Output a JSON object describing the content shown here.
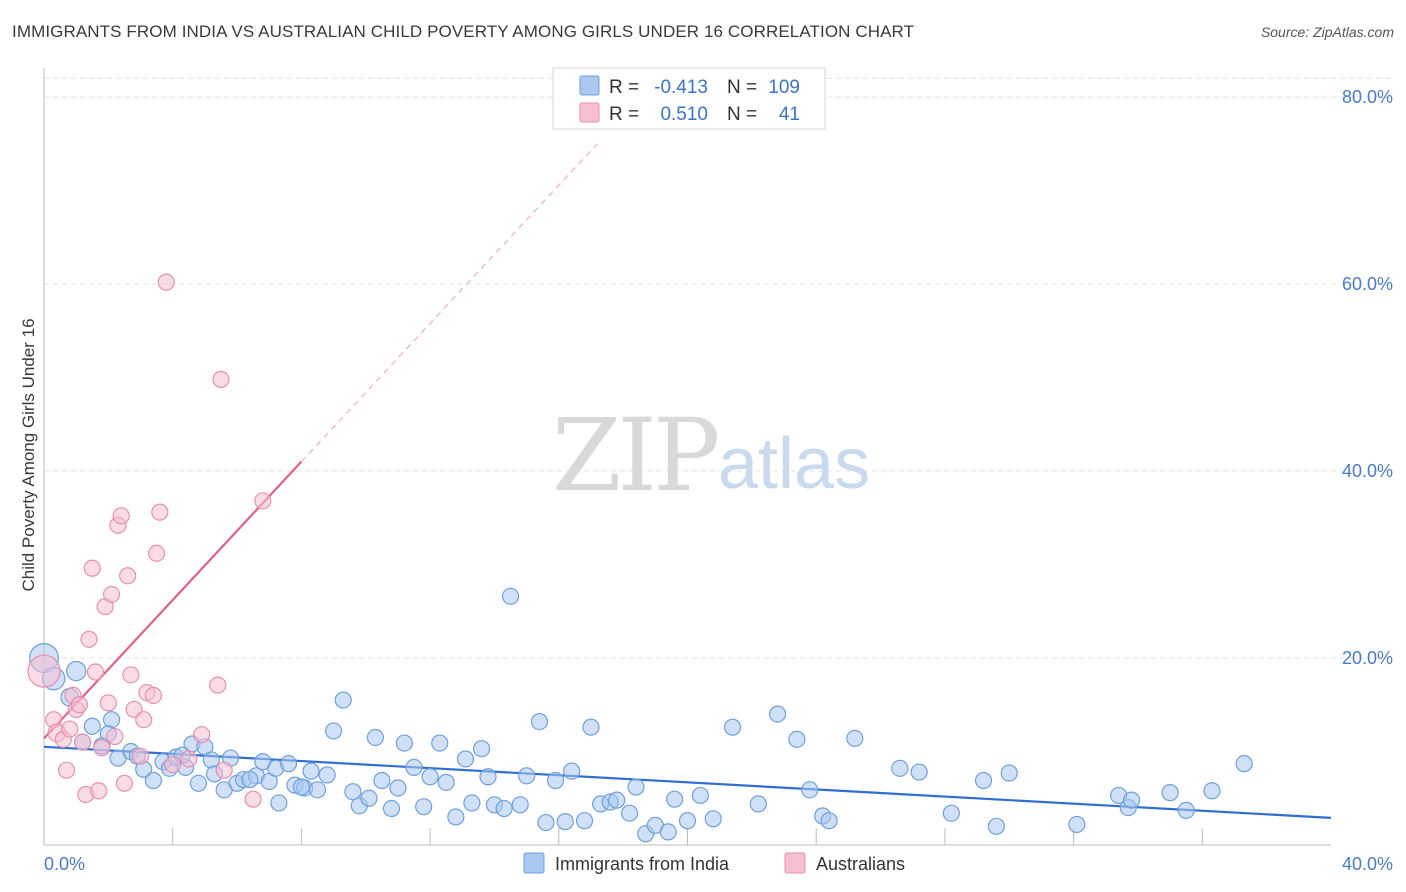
{
  "title": "IMMIGRANTS FROM INDIA VS AUSTRALIAN CHILD POVERTY AMONG GIRLS UNDER 16 CORRELATION CHART",
  "source": "Source: ZipAtlas.com",
  "watermark": {
    "zip": "ZIP",
    "atlas": "atlas"
  },
  "colors": {
    "blue_fill": "#a9c8f0",
    "blue_stroke": "#6fa0dc",
    "blue_line": "#2f6fd0",
    "pink_fill": "#f6c0d2",
    "pink_stroke": "#e98fb0",
    "pink_line": "#e0608e",
    "grid": "#e3e3e3",
    "tick_text": "#4a7cc9"
  },
  "legend": {
    "rows": [
      {
        "r_label": "R =",
        "r_value": "-0.413",
        "n_label": "N =",
        "n_value": "109"
      },
      {
        "r_label": "R =",
        "r_value": "0.510",
        "n_label": "N =",
        "n_value": "41"
      }
    ]
  },
  "chart_data": {
    "type": "scatter",
    "xlabel": "",
    "ylabel": "Child Poverty Among Girls Under 16",
    "xlim": [
      0,
      40
    ],
    "ylim": [
      0,
      82
    ],
    "x_tick_labels": [
      "0.0%",
      "40.0%"
    ],
    "y_ticks": [
      20,
      40,
      60,
      80
    ],
    "y_tick_labels": [
      "20.0%",
      "40.0%",
      "60.0%",
      "80.0%"
    ],
    "grid": true,
    "series": [
      {
        "name": "Immigrants from India",
        "color": "blue",
        "trend": {
          "x0": 0,
          "y0": 10.5,
          "x1": 40,
          "y1": 2.9
        },
        "points": [
          [
            0,
            20,
            18
          ],
          [
            0.3,
            17.8,
            14
          ],
          [
            1.0,
            18.6,
            12
          ],
          [
            0.8,
            15.8,
            11
          ],
          [
            1.2,
            11.0,
            10
          ],
          [
            1.5,
            12.7,
            10
          ],
          [
            1.8,
            10.6,
            10
          ],
          [
            2.1,
            13.4,
            10
          ],
          [
            2.0,
            11.9,
            10
          ],
          [
            2.3,
            9.3,
            10
          ],
          [
            2.7,
            10.0,
            10
          ],
          [
            2.9,
            9.5,
            10
          ],
          [
            3.1,
            8.1,
            10
          ],
          [
            3.4,
            6.9,
            10
          ],
          [
            3.7,
            8.9,
            10
          ],
          [
            3.9,
            8.2,
            10
          ],
          [
            4.1,
            9.4,
            10
          ],
          [
            4.4,
            8.3,
            10
          ],
          [
            4.6,
            10.8,
            10
          ],
          [
            4.8,
            6.6,
            10
          ],
          [
            5.0,
            10.5,
            10
          ],
          [
            5.2,
            9.1,
            10
          ],
          [
            5.3,
            7.6,
            10
          ],
          [
            5.6,
            5.9,
            10
          ],
          [
            5.8,
            9.3,
            10
          ],
          [
            6.0,
            6.6,
            10
          ],
          [
            6.2,
            7.0,
            10
          ],
          [
            6.6,
            7.4,
            10
          ],
          [
            6.8,
            8.9,
            10
          ],
          [
            7.0,
            6.8,
            10
          ],
          [
            7.2,
            8.2,
            10
          ],
          [
            7.3,
            4.5,
            10
          ],
          [
            7.6,
            8.7,
            10
          ],
          [
            7.8,
            6.4,
            10
          ],
          [
            8.1,
            6.1,
            10
          ],
          [
            8.3,
            7.9,
            10
          ],
          [
            8.5,
            5.9,
            10
          ],
          [
            8.8,
            7.5,
            10
          ],
          [
            9.0,
            12.2,
            10
          ],
          [
            9.3,
            15.5,
            10
          ],
          [
            9.6,
            5.7,
            10
          ],
          [
            9.8,
            4.2,
            10
          ],
          [
            10.1,
            5.0,
            10
          ],
          [
            10.3,
            11.5,
            10
          ],
          [
            10.5,
            6.9,
            10
          ],
          [
            10.8,
            3.9,
            10
          ],
          [
            11.0,
            6.1,
            10
          ],
          [
            11.2,
            10.9,
            10
          ],
          [
            11.5,
            8.3,
            10
          ],
          [
            11.8,
            4.1,
            10
          ],
          [
            12.0,
            7.3,
            10
          ],
          [
            12.3,
            10.9,
            10
          ],
          [
            12.5,
            6.7,
            10
          ],
          [
            12.8,
            3.0,
            10
          ],
          [
            13.1,
            9.2,
            10
          ],
          [
            13.3,
            4.5,
            10
          ],
          [
            13.6,
            10.3,
            10
          ],
          [
            13.8,
            7.3,
            10
          ],
          [
            14.0,
            4.3,
            10
          ],
          [
            14.3,
            3.9,
            10
          ],
          [
            14.5,
            26.6,
            10
          ],
          [
            14.8,
            4.3,
            10
          ],
          [
            15.0,
            7.4,
            10
          ],
          [
            15.4,
            13.2,
            10
          ],
          [
            15.6,
            2.4,
            10
          ],
          [
            15.9,
            6.9,
            10
          ],
          [
            16.2,
            2.5,
            10
          ],
          [
            16.4,
            7.9,
            10
          ],
          [
            16.8,
            2.6,
            10
          ],
          [
            17.0,
            12.6,
            10
          ],
          [
            17.3,
            4.4,
            10
          ],
          [
            17.6,
            4.6,
            10
          ],
          [
            17.8,
            4.8,
            10
          ],
          [
            18.2,
            3.4,
            10
          ],
          [
            18.4,
            6.2,
            10
          ],
          [
            18.7,
            1.2,
            10
          ],
          [
            19.0,
            2.1,
            10
          ],
          [
            19.4,
            1.4,
            10
          ],
          [
            19.6,
            4.9,
            10
          ],
          [
            20.0,
            2.6,
            10
          ],
          [
            20.4,
            5.3,
            10
          ],
          [
            20.8,
            2.8,
            10
          ],
          [
            21.4,
            12.6,
            10
          ],
          [
            22.2,
            4.4,
            10
          ],
          [
            22.8,
            14.0,
            10
          ],
          [
            23.4,
            11.3,
            10
          ],
          [
            23.8,
            5.9,
            10
          ],
          [
            24.2,
            3.1,
            10
          ],
          [
            24.4,
            2.6,
            10
          ],
          [
            25.2,
            11.4,
            10
          ],
          [
            26.6,
            8.2,
            10
          ],
          [
            27.2,
            7.8,
            10
          ],
          [
            28.2,
            3.4,
            10
          ],
          [
            29.2,
            6.9,
            10
          ],
          [
            29.6,
            2.0,
            10
          ],
          [
            30.0,
            7.7,
            10
          ],
          [
            32.1,
            2.2,
            10
          ],
          [
            33.4,
            5.3,
            10
          ],
          [
            33.7,
            4.0,
            10
          ],
          [
            33.8,
            4.8,
            10
          ],
          [
            35.0,
            5.6,
            10
          ],
          [
            35.5,
            3.7,
            10
          ],
          [
            36.3,
            5.8,
            10
          ],
          [
            37.3,
            8.7,
            10
          ],
          [
            6.4,
            7.0,
            10
          ],
          [
            4.3,
            9.6,
            10
          ],
          [
            8.0,
            6.2,
            10
          ]
        ]
      },
      {
        "name": "Australians",
        "color": "pink",
        "trend": {
          "x0": 0,
          "y0": 11.4,
          "x1": 8.0,
          "y1": 41.0
        },
        "trend_dashed": {
          "x0": 8.0,
          "y0": 41.0,
          "x1": 17.2,
          "y1": 75.0
        },
        "points": [
          [
            0,
            18.6,
            20
          ],
          [
            0.3,
            13.4,
            10
          ],
          [
            0.4,
            12.0,
            11
          ],
          [
            0.6,
            11.3,
            10
          ],
          [
            0.7,
            8.0,
            10
          ],
          [
            0.9,
            16.0,
            10
          ],
          [
            1.0,
            14.5,
            10
          ],
          [
            1.1,
            15.0,
            10
          ],
          [
            1.3,
            5.4,
            10
          ],
          [
            1.4,
            22.0,
            10
          ],
          [
            1.5,
            29.6,
            10
          ],
          [
            1.6,
            18.5,
            10
          ],
          [
            1.7,
            5.8,
            10
          ],
          [
            1.8,
            10.4,
            10
          ],
          [
            1.9,
            25.5,
            10
          ],
          [
            2.0,
            15.2,
            10
          ],
          [
            2.1,
            26.8,
            10
          ],
          [
            2.2,
            11.6,
            10
          ],
          [
            2.3,
            34.2,
            10
          ],
          [
            2.4,
            35.2,
            10
          ],
          [
            2.5,
            6.6,
            10
          ],
          [
            2.6,
            28.8,
            10
          ],
          [
            2.7,
            18.2,
            10
          ],
          [
            2.8,
            14.5,
            10
          ],
          [
            3.0,
            9.5,
            10
          ],
          [
            3.1,
            13.4,
            10
          ],
          [
            3.2,
            16.3,
            10
          ],
          [
            3.4,
            16.0,
            10
          ],
          [
            3.5,
            31.2,
            10
          ],
          [
            3.6,
            35.6,
            10
          ],
          [
            3.8,
            60.2,
            10
          ],
          [
            4.0,
            8.6,
            10
          ],
          [
            4.5,
            9.2,
            10
          ],
          [
            4.9,
            11.8,
            10
          ],
          [
            5.5,
            49.8,
            10
          ],
          [
            5.4,
            17.1,
            10
          ],
          [
            5.6,
            8.0,
            10
          ],
          [
            6.5,
            4.9,
            10
          ],
          [
            6.8,
            36.8,
            10
          ],
          [
            1.2,
            11.0,
            10
          ],
          [
            0.8,
            12.4,
            10
          ]
        ]
      }
    ]
  },
  "bottom_legend": [
    {
      "label": "Immigrants from India"
    },
    {
      "label": "Australians"
    }
  ]
}
